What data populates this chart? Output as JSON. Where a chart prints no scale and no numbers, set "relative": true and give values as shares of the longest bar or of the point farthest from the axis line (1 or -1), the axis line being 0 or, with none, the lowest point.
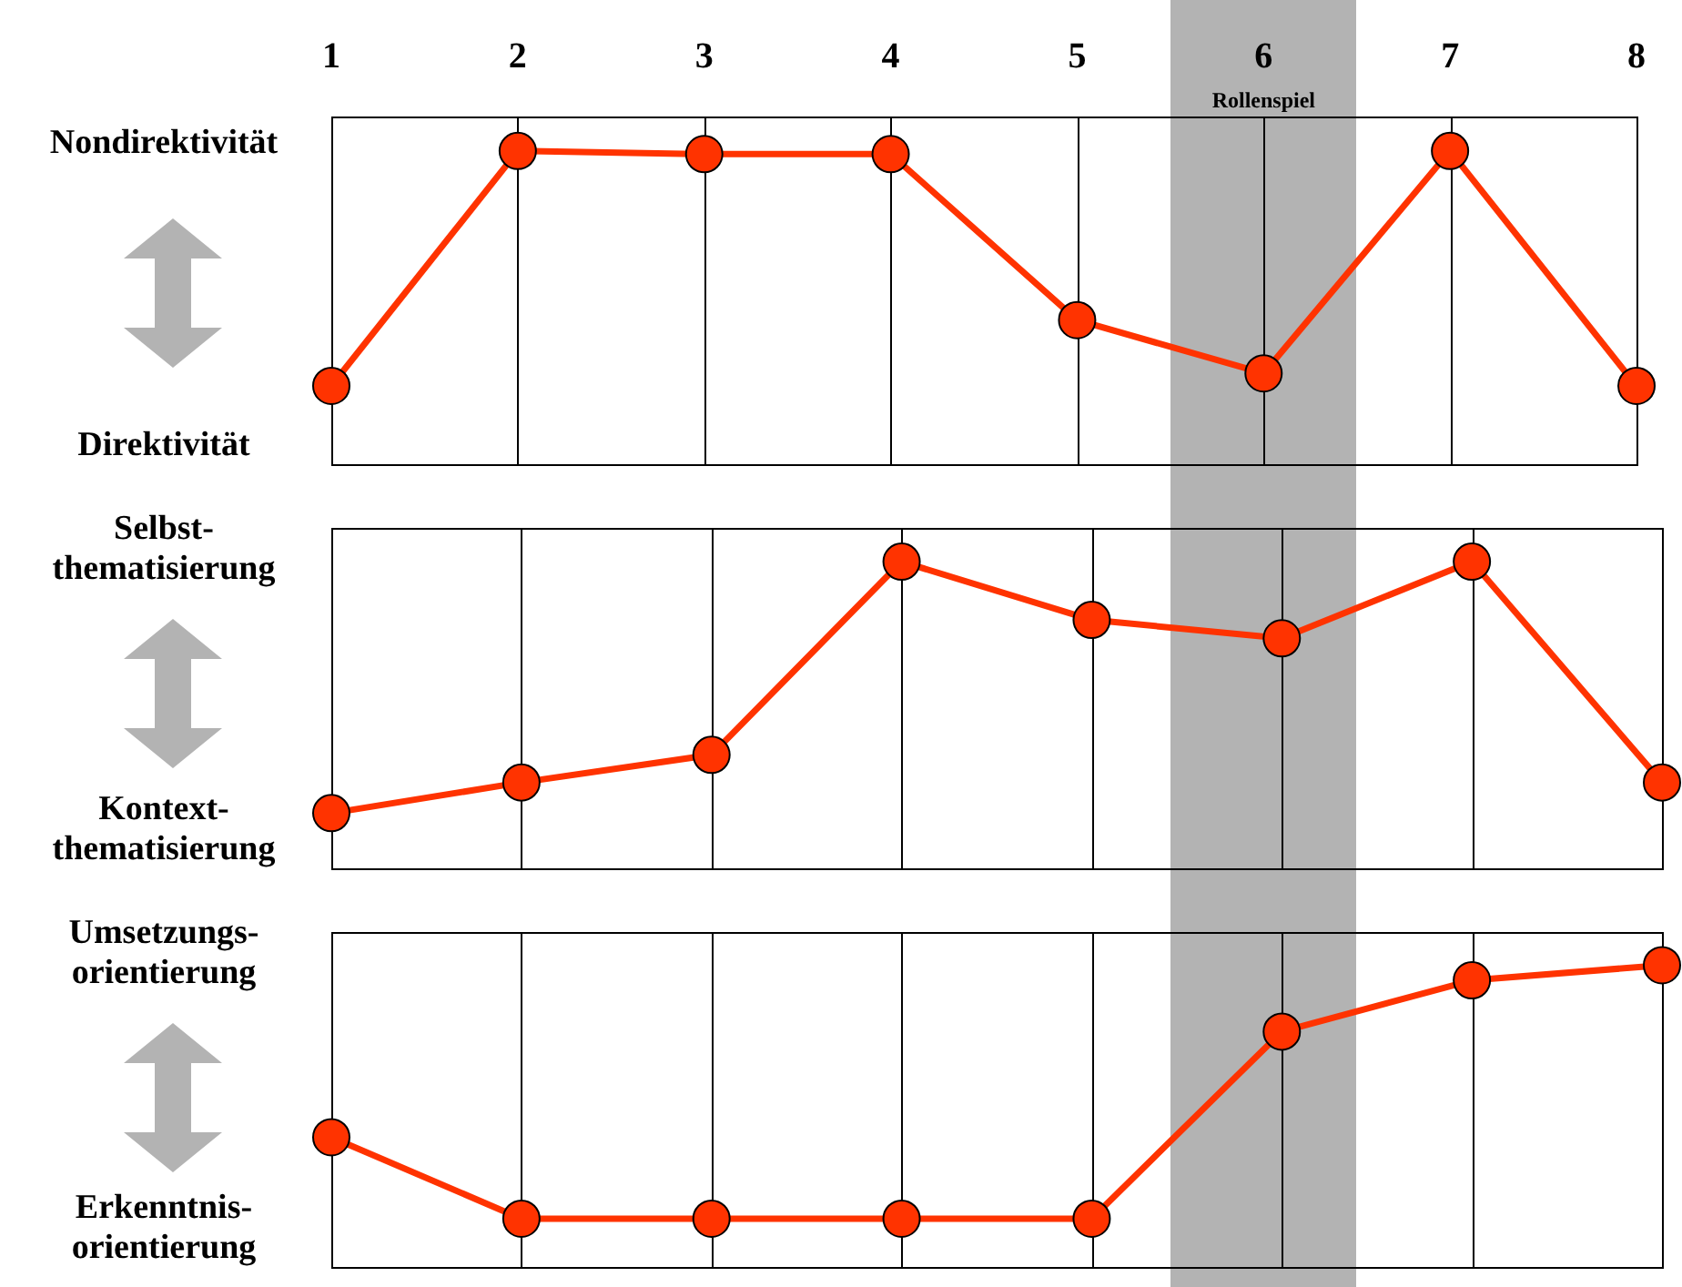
{
  "chart_data": [
    {
      "type": "line",
      "relative": true,
      "x": [
        1,
        2,
        3,
        4,
        5,
        6,
        7,
        8
      ],
      "xlim": [
        1,
        8
      ],
      "xticks": [
        1,
        2,
        3,
        4,
        5,
        6,
        7,
        8
      ],
      "grid": "x",
      "marker": "circle",
      "legend": false,
      "series": [
        {
          "color": "#ff3300",
          "values": [
            0.25,
            1,
            0.99,
            0.99,
            0.46,
            0.29,
            1,
            0.25
          ]
        }
      ],
      "bands": [
        {
          "axis": "x",
          "from": 5.5,
          "to": 6.5,
          "label": "Rollenspiel",
          "color": "#b3b3b3"
        }
      ],
      "annotations": [
        "Nondirektivität",
        "Direktivität"
      ]
    },
    {
      "type": "line",
      "relative": true,
      "categories": [
        null,
        null,
        null,
        null,
        null,
        null,
        null,
        null
      ],
      "tick_labels": false,
      "grid": "x",
      "marker": "circle",
      "legend": false,
      "series": [
        {
          "color": "#ff3300",
          "values": [
            0.18,
            0.28,
            0.37,
            1,
            0.81,
            0.75,
            1,
            0.28
          ]
        }
      ],
      "annotations": [
        "Selbst-\nthematisierung",
        "Kontext-\nthematisierung"
      ]
    },
    {
      "type": "line",
      "relative": true,
      "categories": [
        null,
        null,
        null,
        null,
        null,
        null,
        null,
        null
      ],
      "tick_labels": false,
      "grid": "x",
      "marker": "circle",
      "legend": false,
      "series": [
        {
          "color": "#ff3300",
          "values": [
            0.43,
            0.16,
            0.16,
            0.16,
            0.16,
            0.78,
            0.95,
            1
          ]
        }
      ],
      "annotations": [
        "Umsetzungs-\norientierung",
        "Erkenntnis-\norientierung"
      ]
    }
  ]
}
